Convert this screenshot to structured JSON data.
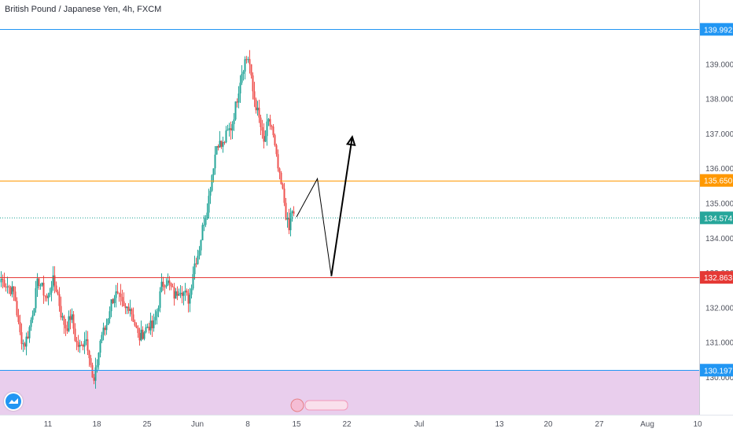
{
  "header": {
    "title": "British Pound / Japanese Yen, 4h, FXCM"
  },
  "colors": {
    "up": "#26a69a",
    "down": "#ef5350",
    "blue_line": "#2196f3",
    "orange_line": "#ff9800",
    "red_line": "#e53935",
    "price_line": "#26a69a",
    "zone": "#e1bee7"
  },
  "chart_data": {
    "type": "candlestick",
    "symbol": "British Pound / Japanese Yen",
    "timeframe": "4h",
    "source": "FXCM",
    "ylim": [
      129.27,
      141.05
    ],
    "y_ticks": [
      "139.000",
      "138.000",
      "137.000",
      "136.000",
      "135.000",
      "134.000",
      "133.000",
      "132.000",
      "131.000",
      "130.000"
    ],
    "x_ticks": [
      "11",
      "18",
      "25",
      "Jun",
      "8",
      "15",
      "22",
      "Jul",
      "13",
      "20",
      "27",
      "Aug",
      "10"
    ],
    "horizontal_lines": [
      {
        "price": 139.992,
        "label": "139.992",
        "color": "blue"
      },
      {
        "price": 135.65,
        "label": "135.650",
        "color": "orange"
      },
      {
        "price": 134.574,
        "label": "134.574",
        "color": "green",
        "style": "dotted"
      },
      {
        "price": 132.863,
        "label": "132.863",
        "color": "red"
      },
      {
        "price": 130.197,
        "label": "130.197",
        "color": "blue"
      }
    ],
    "zone": {
      "from": 130.197,
      "to": 129.27,
      "color": "purple"
    },
    "projection": [
      {
        "date": "Jun 15",
        "price": 134.6
      },
      {
        "date": "Jun 18",
        "price": 135.7
      },
      {
        "date": "Jun 20",
        "price": 132.9
      },
      {
        "date": "Jun 23",
        "price": 136.9
      }
    ],
    "close_path": [
      [
        0,
        132.85
      ],
      [
        10,
        132.6
      ],
      [
        18,
        132.4
      ],
      [
        24,
        131.3
      ],
      [
        30,
        130.9
      ],
      [
        36,
        131.3
      ],
      [
        42,
        132.0
      ],
      [
        48,
        132.8
      ],
      [
        54,
        132.5
      ],
      [
        60,
        132.2
      ],
      [
        66,
        132.8
      ],
      [
        72,
        132.5
      ],
      [
        78,
        131.7
      ],
      [
        84,
        131.4
      ],
      [
        90,
        131.8
      ],
      [
        96,
        131.0
      ],
      [
        102,
        130.8
      ],
      [
        108,
        131.2
      ],
      [
        114,
        130.6
      ],
      [
        118,
        129.7
      ],
      [
        123,
        130.4
      ],
      [
        128,
        131.2
      ],
      [
        134,
        131.4
      ],
      [
        140,
        132.1
      ],
      [
        146,
        132.4
      ],
      [
        152,
        132.2
      ],
      [
        158,
        131.9
      ],
      [
        164,
        132.1
      ],
      [
        170,
        131.6
      ],
      [
        176,
        131.1
      ],
      [
        182,
        131.3
      ],
      [
        188,
        131.5
      ],
      [
        194,
        131.4
      ],
      [
        200,
        132.0
      ],
      [
        205,
        132.6
      ],
      [
        210,
        132.8
      ],
      [
        216,
        132.6
      ],
      [
        222,
        132.3
      ],
      [
        228,
        132.6
      ],
      [
        234,
        132.4
      ],
      [
        240,
        132.2
      ],
      [
        246,
        133.2
      ],
      [
        252,
        133.6
      ],
      [
        258,
        134.4
      ],
      [
        264,
        135.0
      ],
      [
        270,
        136.0
      ],
      [
        276,
        136.8
      ],
      [
        282,
        136.6
      ],
      [
        288,
        137.0
      ],
      [
        294,
        137.2
      ],
      [
        300,
        137.9
      ],
      [
        306,
        138.7
      ],
      [
        311,
        139.1
      ],
      [
        316,
        139.2
      ],
      [
        320,
        138.3
      ],
      [
        325,
        137.8
      ],
      [
        330,
        137.3
      ],
      [
        335,
        136.7
      ],
      [
        340,
        137.3
      ],
      [
        345,
        137.2
      ],
      [
        350,
        136.4
      ],
      [
        355,
        135.7
      ],
      [
        360,
        135.2
      ],
      [
        364,
        134.5
      ],
      [
        367,
        134.2
      ],
      [
        370,
        134.9
      ],
      [
        373,
        134.6
      ]
    ]
  }
}
